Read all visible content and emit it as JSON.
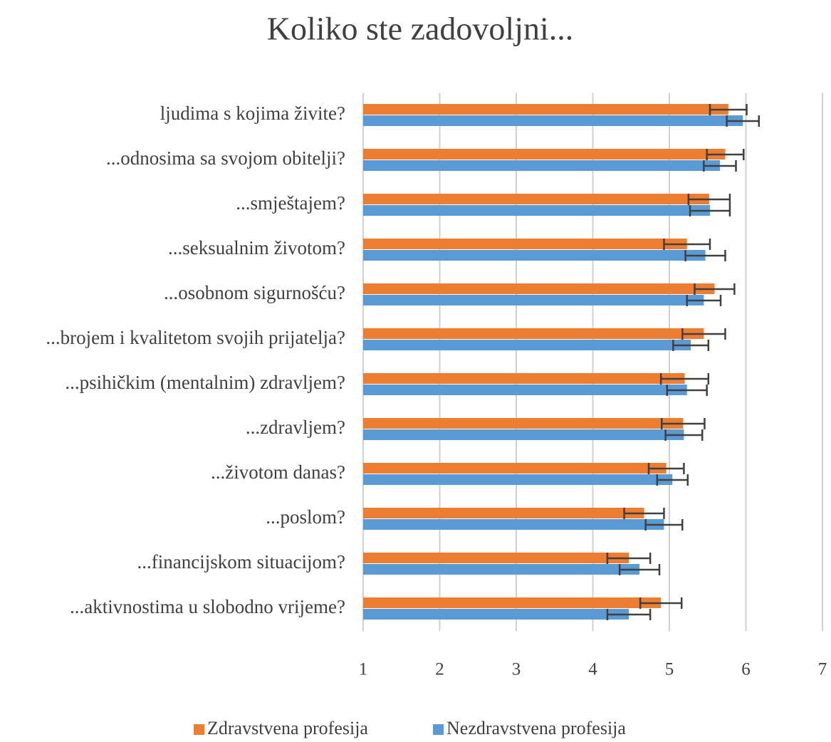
{
  "chart_data": {
    "type": "hbar",
    "title": "Koliko ste zadovoljni...",
    "categories": [
      "ljudima s kojima živite?",
      "...odnosima sa svojom obitelji?",
      "...smještajem?",
      "...seksualnim životom?",
      "...osobnom sigurnošću?",
      "...brojem i kvalitetom svojih prijatelja?",
      "...psihičkim (mentalnim) zdravljem?",
      "...zdravljem?",
      "...životom danas?",
      "...poslom?",
      "...financijskom situacijom?",
      "...aktivnostima u slobodno vrijeme?"
    ],
    "series": [
      {
        "name": "Zdravstvena profesija",
        "color": "#ed7d31",
        "values": [
          5.77,
          5.73,
          5.52,
          5.23,
          5.59,
          5.45,
          5.2,
          5.18,
          4.96,
          4.67,
          4.47,
          4.89
        ],
        "errors": [
          0.24,
          0.24,
          0.27,
          0.3,
          0.26,
          0.28,
          0.31,
          0.28,
          0.23,
          0.26,
          0.28,
          0.27
        ]
      },
      {
        "name": "Nezdravstvena profesija",
        "color": "#5b9bd5",
        "values": [
          5.96,
          5.66,
          5.53,
          5.47,
          5.45,
          5.28,
          5.23,
          5.19,
          5.04,
          4.93,
          4.61,
          4.47
        ],
        "errors": [
          0.21,
          0.21,
          0.26,
          0.26,
          0.22,
          0.23,
          0.26,
          0.24,
          0.2,
          0.24,
          0.26,
          0.28
        ]
      }
    ],
    "xlim": [
      1,
      7
    ],
    "xticks": [
      1,
      2,
      3,
      4,
      5,
      6,
      7
    ],
    "grid": true,
    "legend": "bottom"
  }
}
